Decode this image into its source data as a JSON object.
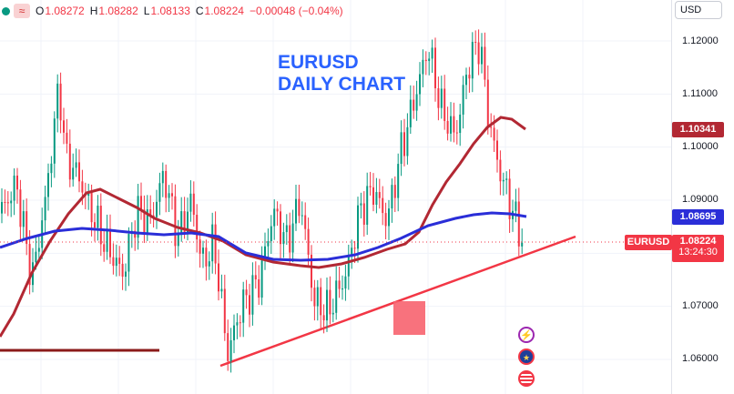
{
  "legend": {
    "open_key": "O",
    "open": "1.08272",
    "high_key": "H",
    "high": "1.08282",
    "low_key": "L",
    "low": "1.08133",
    "close_key": "C",
    "close": "1.08224",
    "change": "−0.00048 (−0.04%)"
  },
  "currency_select": "USD",
  "annotation": {
    "line1": "EURUSD",
    "line2": "DAILY CHART"
  },
  "price_axis": {
    "ticks": [
      "1.12000",
      "1.11000",
      "1.10000",
      "1.09000",
      "1.07000",
      "1.06000"
    ]
  },
  "price_tags": {
    "ma_red": "1.10341",
    "ma_blue": "1.08695",
    "symbol": "EURUSD",
    "last_price": "1.08224",
    "countdown": "13:24:30"
  },
  "colors": {
    "up": "#089981",
    "down": "#f23645",
    "ma_red": "#b22833",
    "ma_blue": "#2a2ed8",
    "trendline": "#f23645",
    "annotation": "#2a62ff"
  },
  "event_icons": [
    "lightning-icon",
    "eu-flag-icon",
    "us-flag-icon"
  ],
  "chart_data": {
    "type": "candlestick",
    "symbol": "EURUSD",
    "y_range": [
      1.0575,
      1.124
    ],
    "last_close": 1.08224,
    "open": 1.08272,
    "high": 1.08282,
    "low": 1.08133,
    "close": 1.08224,
    "ma_red_last": 1.10341,
    "ma_blue_last": 1.08695
  }
}
